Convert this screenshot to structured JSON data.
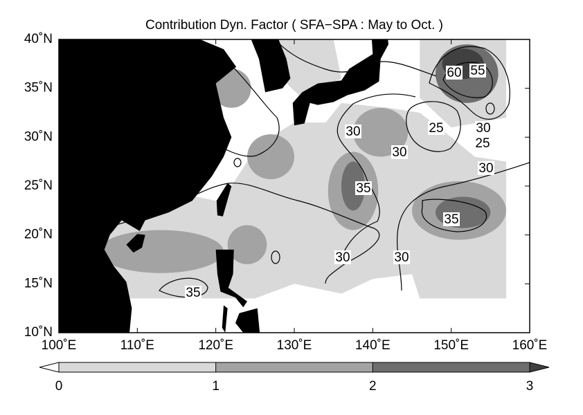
{
  "title": "Contribution Dyn. Factor ( SFA−SPA : May to Oct. )",
  "map": {
    "lon_range": [
      100,
      160
    ],
    "lat_range": [
      10,
      40
    ],
    "lon_ticks": [
      {
        "value": 100,
        "label": "100˚E"
      },
      {
        "value": 110,
        "label": "110˚E"
      },
      {
        "value": 120,
        "label": "120˚E"
      },
      {
        "value": 130,
        "label": "130˚E"
      },
      {
        "value": 140,
        "label": "140˚E"
      },
      {
        "value": 150,
        "label": "150˚E"
      },
      {
        "value": 160,
        "label": "160˚E"
      }
    ],
    "lat_ticks": [
      {
        "value": 10,
        "label": "10˚N"
      },
      {
        "value": 15,
        "label": "15˚N"
      },
      {
        "value": 20,
        "label": "20˚N"
      },
      {
        "value": 25,
        "label": "25˚N"
      },
      {
        "value": 30,
        "label": "30˚N"
      },
      {
        "value": 35,
        "label": "35˚N"
      },
      {
        "value": 40,
        "label": "40˚N"
      }
    ],
    "contour_labels": [
      30,
      30,
      35,
      25,
      30,
      25,
      30,
      35,
      30,
      30,
      35,
      60,
      55
    ]
  },
  "colorbar": {
    "ticks": [
      0,
      1,
      2,
      3
    ],
    "colors": [
      "#d9d9d9",
      "#a3a3a3",
      "#6e6e6e"
    ],
    "under_color": "#ffffff",
    "over_color": "#404040"
  }
}
